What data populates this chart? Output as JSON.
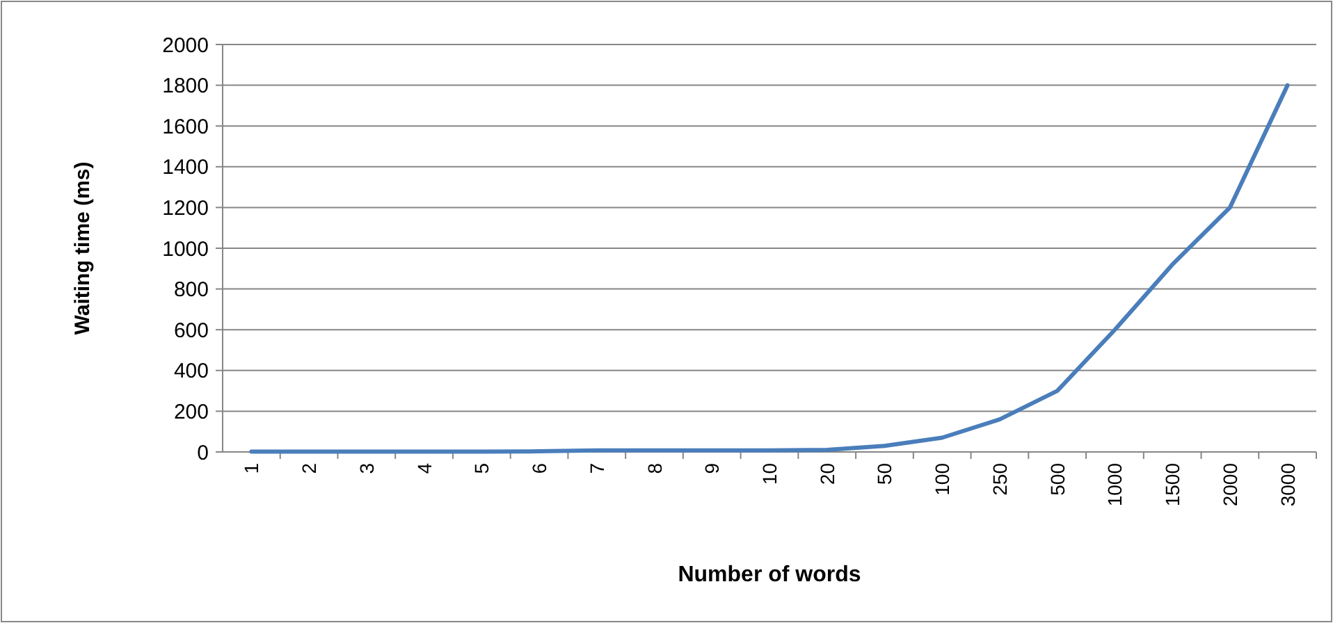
{
  "chart_data": {
    "type": "line",
    "xlabel": "Number of words",
    "ylabel": "Waiting time (ms)",
    "categories": [
      "1",
      "2",
      "3",
      "4",
      "5",
      "6",
      "7",
      "8",
      "9",
      "10",
      "20",
      "50",
      "100",
      "250",
      "500",
      "1000",
      "1500",
      "2000",
      "3000"
    ],
    "series": [
      {
        "color": "#4a7ebb",
        "values": [
          2,
          2,
          2,
          2,
          2,
          3,
          8,
          8,
          8,
          8,
          10,
          30,
          70,
          160,
          300,
          600,
          920,
          1200,
          1800
        ]
      }
    ],
    "ylim": [
      0,
      2000
    ],
    "yticks": [
      0,
      200,
      400,
      600,
      800,
      1000,
      1200,
      1400,
      1600,
      1800,
      2000
    ],
    "grid": "y"
  }
}
